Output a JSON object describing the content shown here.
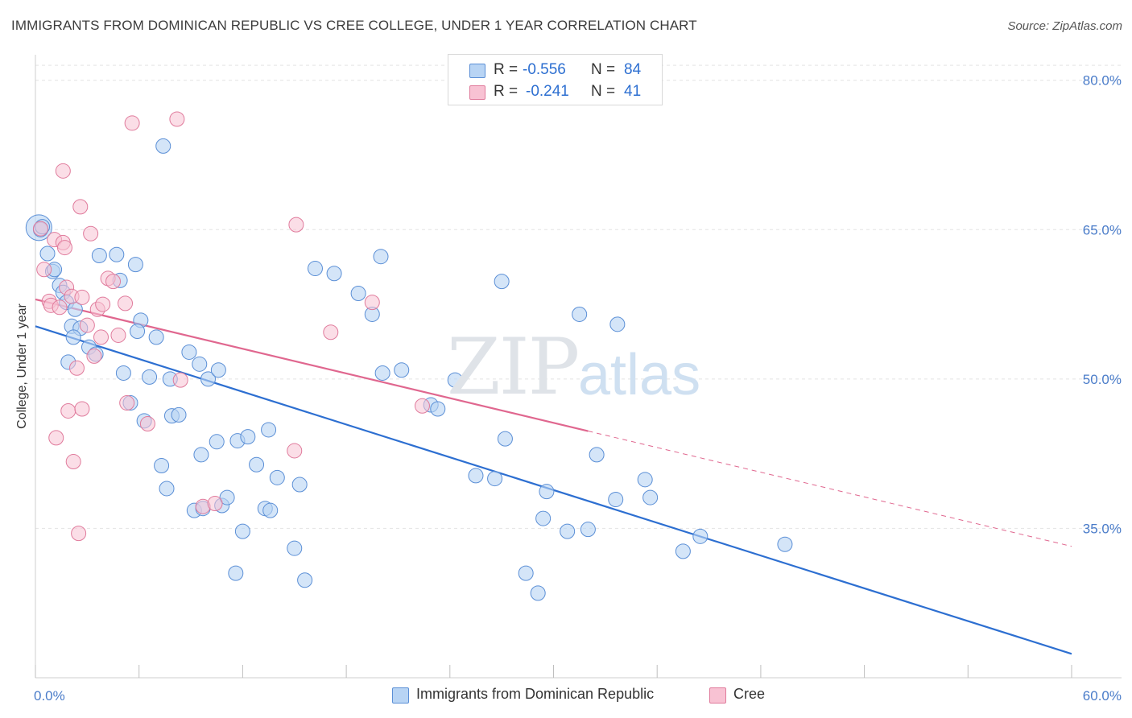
{
  "header": {
    "title": "IMMIGRANTS FROM DOMINICAN REPUBLIC VS CREE COLLEGE, UNDER 1 YEAR CORRELATION CHART",
    "source": "Source: ZipAtlas.com"
  },
  "watermark": {
    "part1": "ZIP",
    "part2": "atlas"
  },
  "legend_top": {
    "rows": [
      {
        "r_label": "R =",
        "r_value": "-0.556",
        "n_label": "N =",
        "n_value": "84"
      },
      {
        "r_label": "R =",
        "r_value": "-0.241",
        "n_label": "N =",
        "n_value": "41"
      }
    ]
  },
  "legend_bottom": {
    "items": [
      {
        "label": "Immigrants from Dominican Republic"
      },
      {
        "label": "Cree"
      }
    ]
  },
  "colors": {
    "blue_fill": "#b8d4f4",
    "blue_stroke": "#5b8fd6",
    "blue_line": "#2d6fd1",
    "pink_fill": "#f8c2d3",
    "pink_stroke": "#e07b9c",
    "pink_line": "#e0678f",
    "grid": "#e4e4e4",
    "tick_text": "#4a7cc9"
  },
  "chart_data": {
    "type": "scatter",
    "title": "IMMIGRANTS FROM DOMINICAN REPUBLIC VS CREE COLLEGE, UNDER 1 YEAR CORRELATION CHART",
    "xlabel": "",
    "ylabel": "College, Under 1 year",
    "xlim": [
      0,
      60
    ],
    "ylim": [
      20,
      82
    ],
    "x_tick_labels": [
      "0.0%",
      "60.0%"
    ],
    "y_ticks": [
      35,
      50,
      65,
      80
    ],
    "y_tick_labels": [
      "35.0%",
      "50.0%",
      "65.0%",
      "80.0%"
    ],
    "legend_position": "top-center",
    "series": [
      {
        "name": "Immigrants from Dominican Republic",
        "R": -0.556,
        "N": 84,
        "trend": {
          "x0": 0,
          "y0": 55.3,
          "x1": 60,
          "y1": 22.4
        },
        "points": [
          [
            0.2,
            65.2
          ],
          [
            0.3,
            65.0
          ],
          [
            0.4,
            65.3
          ],
          [
            0.7,
            62.6
          ],
          [
            1.0,
            60.8
          ],
          [
            1.1,
            61.0
          ],
          [
            1.4,
            59.4
          ],
          [
            1.6,
            58.7
          ],
          [
            1.8,
            57.7
          ],
          [
            2.3,
            57.0
          ],
          [
            2.1,
            55.3
          ],
          [
            2.6,
            55.1
          ],
          [
            2.2,
            54.2
          ],
          [
            1.9,
            51.7
          ],
          [
            3.1,
            53.2
          ],
          [
            3.5,
            52.5
          ],
          [
            3.7,
            62.4
          ],
          [
            4.7,
            62.5
          ],
          [
            4.9,
            59.9
          ],
          [
            5.8,
            61.5
          ],
          [
            6.1,
            55.9
          ],
          [
            5.9,
            54.8
          ],
          [
            7.0,
            54.2
          ],
          [
            7.4,
            73.4
          ],
          [
            5.1,
            50.6
          ],
          [
            6.6,
            50.2
          ],
          [
            7.8,
            50.0
          ],
          [
            8.9,
            52.7
          ],
          [
            9.5,
            51.5
          ],
          [
            10.0,
            50.0
          ],
          [
            10.6,
            50.9
          ],
          [
            5.5,
            47.6
          ],
          [
            6.3,
            45.8
          ],
          [
            7.9,
            46.3
          ],
          [
            8.3,
            46.4
          ],
          [
            7.3,
            41.3
          ],
          [
            7.6,
            39.0
          ],
          [
            9.6,
            42.4
          ],
          [
            10.5,
            43.7
          ],
          [
            11.7,
            43.8
          ],
          [
            12.3,
            44.2
          ],
          [
            12.8,
            41.4
          ],
          [
            13.5,
            44.9
          ],
          [
            14.0,
            40.1
          ],
          [
            15.3,
            39.4
          ],
          [
            9.2,
            36.8
          ],
          [
            9.7,
            37.0
          ],
          [
            10.8,
            37.3
          ],
          [
            11.1,
            38.1
          ],
          [
            13.3,
            37.0
          ],
          [
            13.6,
            36.8
          ],
          [
            12.0,
            34.7
          ],
          [
            11.6,
            30.5
          ],
          [
            15.0,
            33.0
          ],
          [
            15.6,
            29.8
          ],
          [
            16.2,
            61.1
          ],
          [
            17.3,
            60.6
          ],
          [
            18.7,
            58.6
          ],
          [
            19.5,
            56.5
          ],
          [
            20.0,
            62.3
          ],
          [
            20.1,
            50.6
          ],
          [
            21.2,
            50.9
          ],
          [
            22.9,
            47.4
          ],
          [
            23.3,
            47.0
          ],
          [
            24.3,
            49.9
          ],
          [
            25.5,
            40.3
          ],
          [
            26.6,
            40.0
          ],
          [
            27.2,
            44.0
          ],
          [
            28.4,
            30.5
          ],
          [
            29.1,
            28.5
          ],
          [
            29.6,
            38.7
          ],
          [
            30.8,
            34.7
          ],
          [
            32.0,
            34.9
          ],
          [
            32.5,
            42.4
          ],
          [
            33.6,
            37.9
          ],
          [
            35.3,
            39.9
          ],
          [
            35.6,
            38.1
          ],
          [
            37.5,
            32.7
          ],
          [
            38.5,
            34.2
          ],
          [
            27.0,
            59.8
          ],
          [
            29.4,
            36.0
          ],
          [
            31.5,
            56.5
          ],
          [
            33.7,
            55.5
          ],
          [
            43.4,
            33.4
          ]
        ]
      },
      {
        "name": "Cree",
        "R": -0.241,
        "N": 41,
        "trend": {
          "x0": 0,
          "y0": 58.0,
          "x1": 60,
          "y1": 33.2,
          "solid_until_x": 32
        },
        "points": [
          [
            0.3,
            65.1
          ],
          [
            0.5,
            61.0
          ],
          [
            0.8,
            57.8
          ],
          [
            0.9,
            57.4
          ],
          [
            1.1,
            64.0
          ],
          [
            1.4,
            57.2
          ],
          [
            1.6,
            63.7
          ],
          [
            1.6,
            70.9
          ],
          [
            1.8,
            59.2
          ],
          [
            2.1,
            58.3
          ],
          [
            2.4,
            51.1
          ],
          [
            2.6,
            67.3
          ],
          [
            2.7,
            58.2
          ],
          [
            3.0,
            55.4
          ],
          [
            3.4,
            52.3
          ],
          [
            3.6,
            57.0
          ],
          [
            3.8,
            54.2
          ],
          [
            4.2,
            60.1
          ],
          [
            4.5,
            59.8
          ],
          [
            4.8,
            54.4
          ],
          [
            5.2,
            57.6
          ],
          [
            5.6,
            75.7
          ],
          [
            6.5,
            45.5
          ],
          [
            5.3,
            47.6
          ],
          [
            1.9,
            46.8
          ],
          [
            2.7,
            47.0
          ],
          [
            1.2,
            44.1
          ],
          [
            2.2,
            41.7
          ],
          [
            2.5,
            34.5
          ],
          [
            8.2,
            76.1
          ],
          [
            8.4,
            49.9
          ],
          [
            9.7,
            37.2
          ],
          [
            10.4,
            37.5
          ],
          [
            15.0,
            42.8
          ],
          [
            15.1,
            65.5
          ],
          [
            19.5,
            57.7
          ],
          [
            17.1,
            54.7
          ],
          [
            22.4,
            47.3
          ],
          [
            3.2,
            64.6
          ],
          [
            1.7,
            63.2
          ],
          [
            3.9,
            57.5
          ]
        ]
      }
    ]
  }
}
